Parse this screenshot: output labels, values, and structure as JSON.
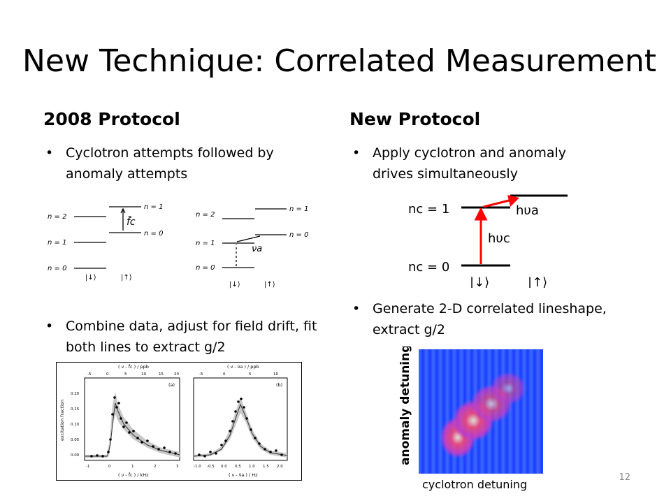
{
  "slide": {
    "title": "New Technique: Correlated Measurement",
    "number": "12",
    "left": {
      "heading": "2008 Protocol",
      "bullet1": "Cyclotron attempts followed by anomaly attempts",
      "bullet2": "Combine data, adjust for field drift, fit both lines to extract g/2"
    },
    "right": {
      "heading": "New Protocol",
      "bullet1": "Apply cyclotron and anomaly drives simultaneously",
      "bullet2": "Generate 2-D correlated lineshape, extract g/2"
    }
  },
  "diagram_2008": {
    "labels_left": [
      "n = 2",
      "n = 1",
      "n = 0"
    ],
    "labels_right": [
      "n = 1",
      "n = 0"
    ],
    "spin_down": "|↓⟩",
    "spin_up": "|↑⟩",
    "fc": "f̄c",
    "nua": "νa"
  },
  "diagram_new": {
    "nc1": "nc = 1",
    "nc0": "nc = 0",
    "h_nu_a": "hυa",
    "h_nu_c": "hυc",
    "spin_down": "|↓⟩",
    "spin_up": "|↑⟩",
    "arrow_color": "#ff0000"
  },
  "plots_2008": {
    "a": {
      "panel": "(a)",
      "top_axis": "( ν - f̄c ) / ppb",
      "top_ticks": [
        "-5",
        "0",
        "5",
        "10",
        "15",
        "20"
      ],
      "bottom_axis": "( ν - f̄c ) / kHz",
      "bottom_ticks": [
        "-1",
        "0",
        "1",
        "2",
        "3"
      ],
      "ylabel": "excitation fraction",
      "yticks": [
        "0.00",
        "0.05",
        "0.10",
        "0.15",
        "0.20"
      ]
    },
    "b": {
      "panel": "(b)",
      "top_axis": "( ν - ν̄a ) / ppb",
      "top_ticks": [
        "-5",
        "0",
        "5",
        "10"
      ],
      "bottom_axis": "( ν - ν̄a ) / Hz",
      "bottom_ticks": [
        "-1.0",
        "-0.5",
        "0.0",
        "0.5",
        "1.0",
        "1.5",
        "2.0"
      ]
    }
  },
  "heatmap": {
    "ylabel": "anomaly detuning",
    "xlabel": "cyclotron detuning"
  }
}
